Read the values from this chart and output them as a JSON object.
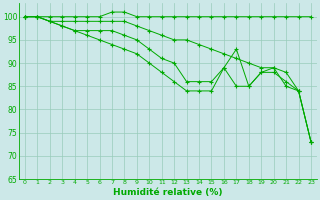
{
  "xlabel": "Humidité relative (%)",
  "background_color": "#cce8e8",
  "grid_color": "#99ccbb",
  "line_color": "#00aa00",
  "xlim": [
    -0.5,
    23.5
  ],
  "ylim": [
    65,
    103
  ],
  "yticks": [
    65,
    70,
    75,
    80,
    85,
    90,
    95,
    100
  ],
  "xticks": [
    0,
    1,
    2,
    3,
    4,
    5,
    6,
    7,
    8,
    9,
    10,
    11,
    12,
    13,
    14,
    15,
    16,
    17,
    18,
    19,
    20,
    21,
    22,
    23
  ],
  "line1": [
    100,
    100,
    100,
    100,
    100,
    100,
    100,
    101,
    101,
    100,
    100,
    100,
    100,
    100,
    100,
    100,
    100,
    100,
    100,
    100,
    100,
    100,
    100,
    100
  ],
  "line2": [
    100,
    100,
    99,
    99,
    99,
    99,
    99,
    99,
    99,
    98,
    97,
    96,
    95,
    95,
    94,
    93,
    92,
    91,
    90,
    89,
    89,
    88,
    84,
    73
  ],
  "line3": [
    100,
    100,
    99,
    98,
    97,
    97,
    97,
    97,
    96,
    95,
    93,
    91,
    90,
    86,
    86,
    86,
    89,
    93,
    85,
    88,
    89,
    85,
    84,
    73
  ],
  "line4": [
    100,
    100,
    99,
    98,
    97,
    96,
    95,
    94,
    93,
    92,
    90,
    88,
    86,
    84,
    84,
    84,
    89,
    85,
    85,
    88,
    88,
    86,
    84,
    73
  ]
}
